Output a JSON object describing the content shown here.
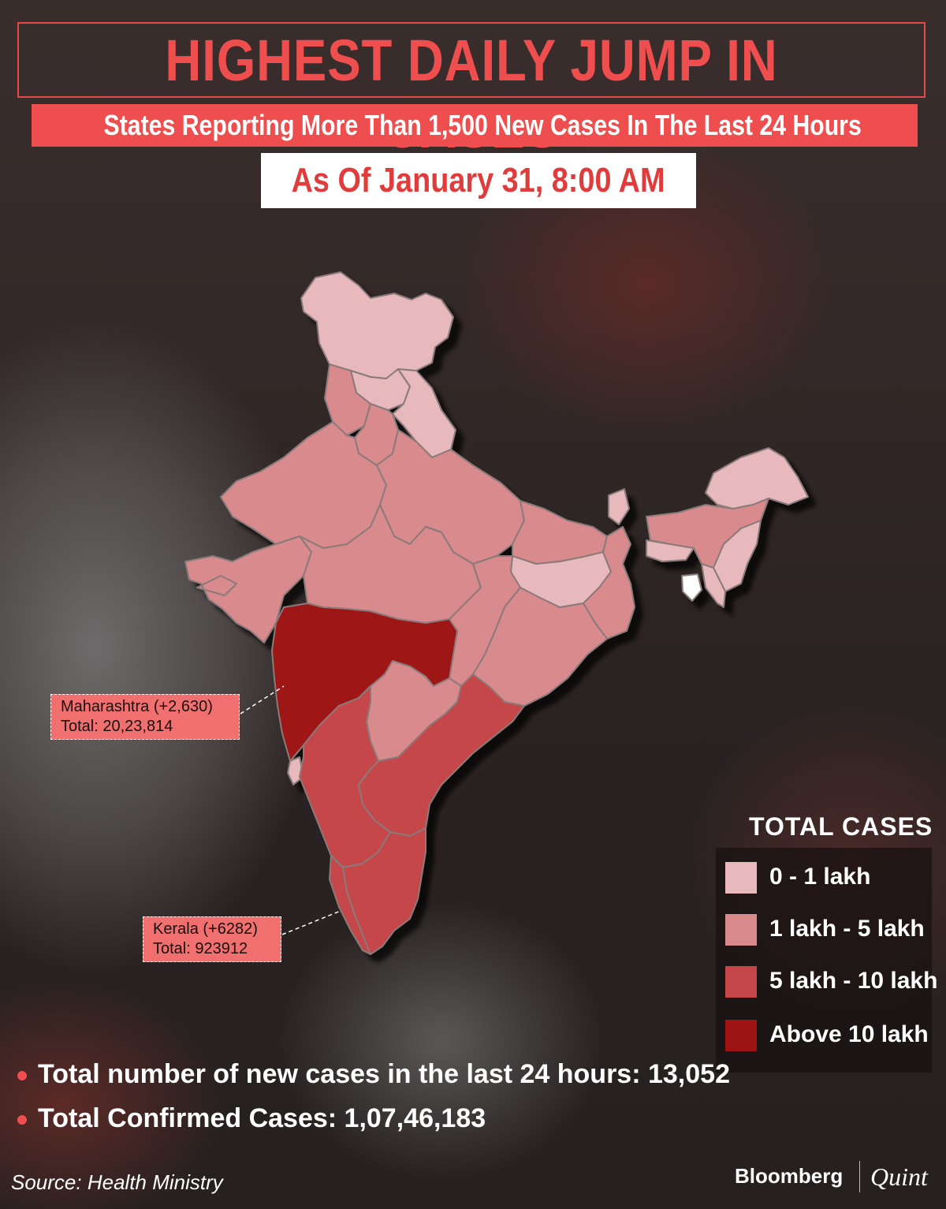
{
  "title": "HIGHEST DAILY JUMP IN CASES",
  "subtitle": "States Reporting More Than 1,500 New Cases In The Last 24 Hours",
  "date": "As Of January 31, 8:00 AM",
  "colors": {
    "accent": "#ef4e4e",
    "band_0_1": "#e8b9bc",
    "band_1_5": "#d98a8c",
    "band_5_10": "#c54648",
    "band_above_10": "#9e1414"
  },
  "callouts": {
    "maharashtra": {
      "line1": "Maharashtra (+2,630)",
      "line2": "Total: 20,23,814"
    },
    "kerala": {
      "line1": "Kerala (+6282)",
      "line2": "Total: 923912"
    }
  },
  "legend": {
    "title": "TOTAL  CASES",
    "items": [
      {
        "label": "0 - 1 lakh",
        "color": "#e8b9bc"
      },
      {
        "label": "1 lakh - 5 lakh",
        "color": "#d98a8c"
      },
      {
        "label": "5 lakh - 10 lakh",
        "color": "#c54648"
      },
      {
        "label": "Above 10 lakh",
        "color": "#9e1414"
      }
    ]
  },
  "stats": {
    "new_cases": "Total number of new cases in the last 24 hours: 13,052",
    "confirmed": "Total Confirmed Cases:  1,07,46,183"
  },
  "source": "Source: Health Ministry",
  "brand": {
    "primary": "Bloomberg",
    "secondary": "Quint"
  }
}
